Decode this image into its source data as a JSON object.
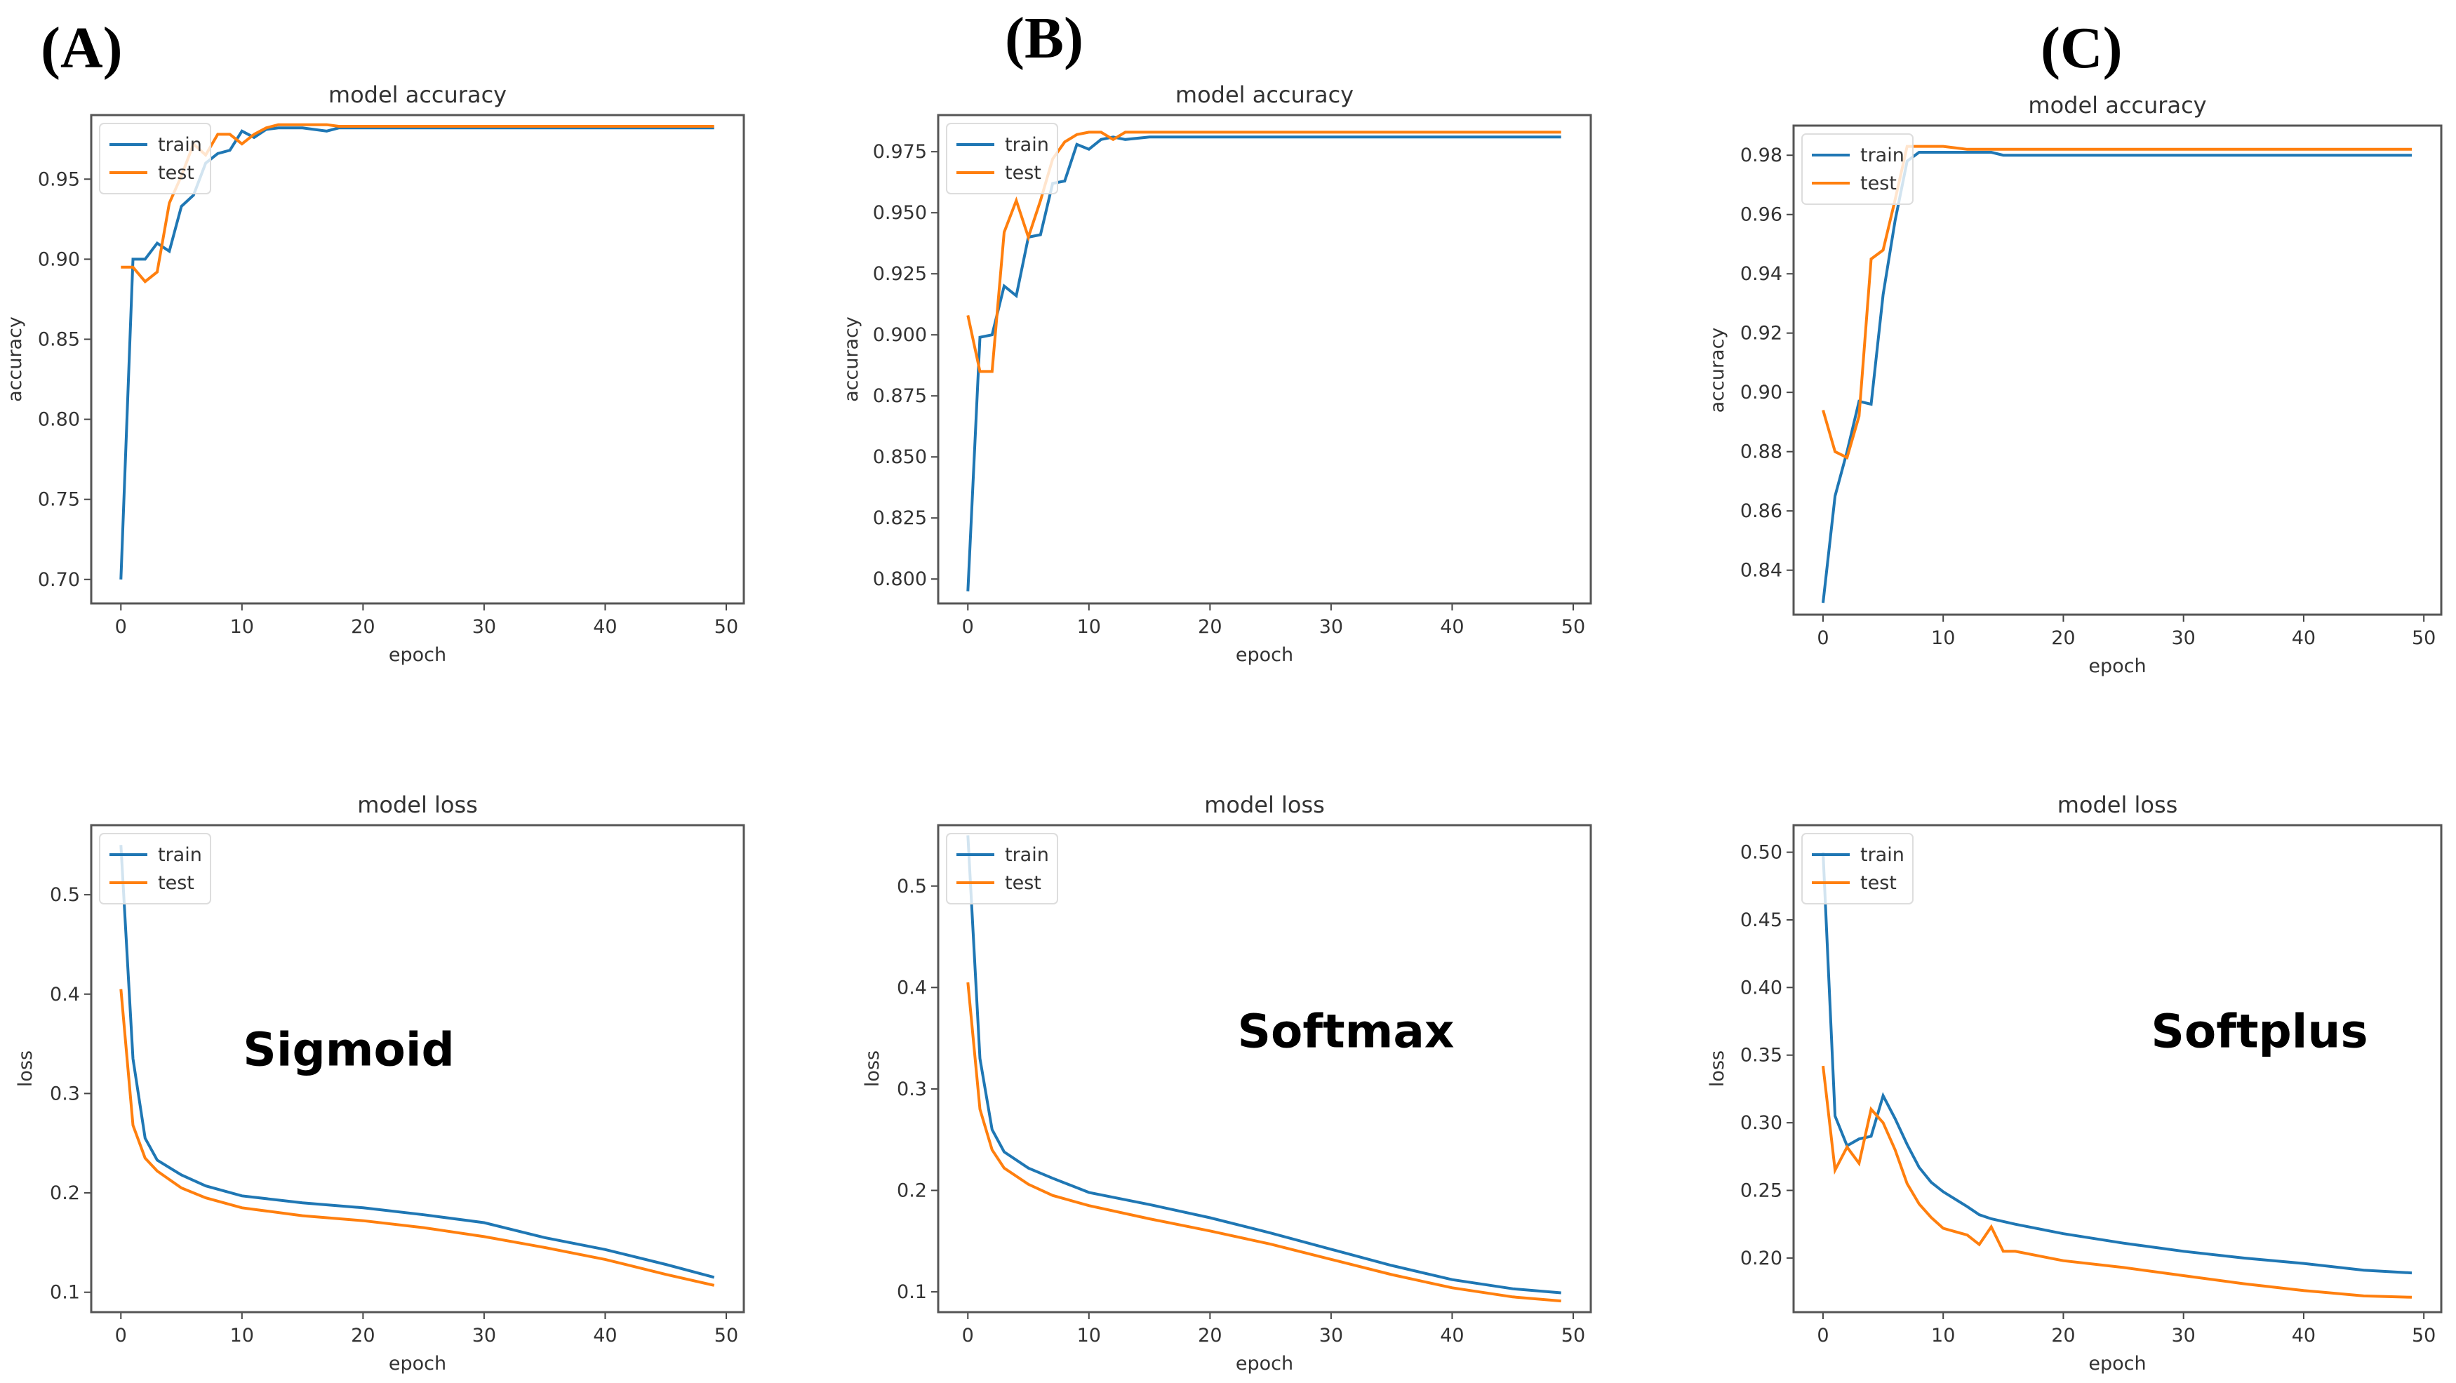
{
  "panel_labels": [
    "(A)",
    "(B)",
    "(C)"
  ],
  "activation_labels": [
    "Sigmoid",
    "Softmax",
    "Softplus"
  ],
  "colors": {
    "train": "#1f77b4",
    "test": "#ff7f0e"
  },
  "chart_data": [
    {
      "type": "line",
      "panel": "A",
      "title": "model accuracy",
      "xlabel": "epoch",
      "ylabel": "accuracy",
      "xlim": [
        -2.45,
        51.45
      ],
      "ylim": [
        0.685,
        0.99
      ],
      "xticks": [
        0,
        10,
        20,
        30,
        40,
        50
      ],
      "yticks": [
        0.7,
        0.75,
        0.8,
        0.85,
        0.9,
        0.95
      ],
      "ytick_labels": [
        "0.70",
        "0.75",
        "0.80",
        "0.85",
        "0.90",
        "0.95"
      ],
      "legend": "upper-left",
      "series": [
        {
          "name": "train",
          "x": [
            0,
            1,
            2,
            3,
            4,
            5,
            6,
            7,
            8,
            9,
            10,
            11,
            12,
            13,
            15,
            17,
            18,
            20,
            30,
            49
          ],
          "y": [
            0.7,
            0.9,
            0.9,
            0.91,
            0.905,
            0.933,
            0.94,
            0.96,
            0.966,
            0.968,
            0.98,
            0.976,
            0.981,
            0.982,
            0.982,
            0.98,
            0.982,
            0.982,
            0.982,
            0.982
          ]
        },
        {
          "name": "test",
          "x": [
            0,
            1,
            2,
            3,
            4,
            5,
            6,
            7,
            8,
            9,
            10,
            11,
            12,
            13,
            15,
            17,
            18,
            20,
            30,
            49
          ],
          "y": [
            0.895,
            0.895,
            0.886,
            0.892,
            0.935,
            0.952,
            0.972,
            0.965,
            0.978,
            0.978,
            0.972,
            0.978,
            0.982,
            0.984,
            0.984,
            0.984,
            0.983,
            0.983,
            0.983,
            0.983
          ]
        }
      ]
    },
    {
      "type": "line",
      "panel": "B",
      "title": "model accuracy",
      "xlabel": "epoch",
      "ylabel": "accuracy",
      "xlim": [
        -2.45,
        51.45
      ],
      "ylim": [
        0.79,
        0.99
      ],
      "xticks": [
        0,
        10,
        20,
        30,
        40,
        50
      ],
      "yticks": [
        0.8,
        0.825,
        0.85,
        0.875,
        0.9,
        0.925,
        0.95,
        0.975
      ],
      "ytick_labels": [
        "0.800",
        "0.825",
        "0.850",
        "0.875",
        "0.900",
        "0.925",
        "0.950",
        "0.975"
      ],
      "legend": "upper-left",
      "series": [
        {
          "name": "train",
          "x": [
            0,
            1,
            2,
            3,
            4,
            5,
            6,
            7,
            8,
            9,
            10,
            11,
            12,
            13,
            15,
            20,
            49
          ],
          "y": [
            0.795,
            0.899,
            0.9,
            0.92,
            0.916,
            0.94,
            0.941,
            0.962,
            0.963,
            0.978,
            0.976,
            0.98,
            0.981,
            0.98,
            0.981,
            0.981,
            0.981
          ]
        },
        {
          "name": "test",
          "x": [
            0,
            1,
            2,
            3,
            4,
            5,
            6,
            7,
            8,
            9,
            10,
            11,
            12,
            13,
            15,
            20,
            49
          ],
          "y": [
            0.908,
            0.885,
            0.885,
            0.942,
            0.955,
            0.94,
            0.955,
            0.972,
            0.979,
            0.982,
            0.983,
            0.983,
            0.98,
            0.983,
            0.983,
            0.983,
            0.983
          ]
        }
      ]
    },
    {
      "type": "line",
      "panel": "C",
      "title": "model accuracy",
      "xlabel": "epoch",
      "ylabel": "accuracy",
      "xlim": [
        -2.45,
        51.45
      ],
      "ylim": [
        0.825,
        0.99
      ],
      "xticks": [
        0,
        10,
        20,
        30,
        40,
        50
      ],
      "yticks": [
        0.84,
        0.86,
        0.88,
        0.9,
        0.92,
        0.94,
        0.96,
        0.98
      ],
      "ytick_labels": [
        "0.84",
        "0.86",
        "0.88",
        "0.90",
        "0.92",
        "0.94",
        "0.96",
        "0.98"
      ],
      "legend": "upper-left",
      "series": [
        {
          "name": "train",
          "x": [
            0,
            1,
            2,
            3,
            4,
            5,
            6,
            7,
            8,
            10,
            12,
            14,
            15,
            20,
            49
          ],
          "y": [
            0.829,
            0.865,
            0.88,
            0.897,
            0.896,
            0.933,
            0.958,
            0.978,
            0.981,
            0.981,
            0.981,
            0.981,
            0.98,
            0.98,
            0.98
          ]
        },
        {
          "name": "test",
          "x": [
            0,
            1,
            2,
            3,
            4,
            5,
            6,
            7,
            8,
            10,
            12,
            14,
            15,
            20,
            49
          ],
          "y": [
            0.894,
            0.88,
            0.878,
            0.892,
            0.945,
            0.948,
            0.965,
            0.983,
            0.983,
            0.983,
            0.982,
            0.982,
            0.982,
            0.982,
            0.982
          ]
        }
      ]
    },
    {
      "type": "line",
      "panel": "A",
      "title": "model loss",
      "xlabel": "epoch",
      "ylabel": "loss",
      "xlim": [
        -2.45,
        51.45
      ],
      "ylim": [
        0.08,
        0.57
      ],
      "xticks": [
        0,
        10,
        20,
        30,
        40,
        50
      ],
      "yticks": [
        0.1,
        0.2,
        0.3,
        0.4,
        0.5
      ],
      "ytick_labels": [
        "0.1",
        "0.2",
        "0.3",
        "0.4",
        "0.5"
      ],
      "legend": "upper-left",
      "series": [
        {
          "name": "train",
          "x": [
            0,
            1,
            2,
            3,
            5,
            7,
            10,
            15,
            20,
            25,
            30,
            35,
            40,
            45,
            49
          ],
          "y": [
            0.55,
            0.335,
            0.255,
            0.233,
            0.218,
            0.207,
            0.197,
            0.19,
            0.185,
            0.178,
            0.17,
            0.155,
            0.143,
            0.128,
            0.115
          ]
        },
        {
          "name": "test",
          "x": [
            0,
            1,
            2,
            3,
            5,
            7,
            10,
            15,
            20,
            25,
            30,
            35,
            40,
            45,
            49
          ],
          "y": [
            0.405,
            0.268,
            0.235,
            0.222,
            0.205,
            0.195,
            0.185,
            0.177,
            0.172,
            0.165,
            0.156,
            0.145,
            0.133,
            0.118,
            0.107
          ]
        }
      ]
    },
    {
      "type": "line",
      "panel": "B",
      "title": "model loss",
      "xlabel": "epoch",
      "ylabel": "loss",
      "xlim": [
        -2.45,
        51.45
      ],
      "ylim": [
        0.08,
        0.56
      ],
      "xticks": [
        0,
        10,
        20,
        30,
        40,
        50
      ],
      "yticks": [
        0.1,
        0.2,
        0.3,
        0.4,
        0.5
      ],
      "ytick_labels": [
        "0.1",
        "0.2",
        "0.3",
        "0.4",
        "0.5"
      ],
      "legend": "upper-left",
      "series": [
        {
          "name": "train",
          "x": [
            0,
            1,
            2,
            3,
            5,
            7,
            10,
            15,
            20,
            25,
            30,
            35,
            40,
            45,
            49
          ],
          "y": [
            0.55,
            0.33,
            0.26,
            0.238,
            0.222,
            0.212,
            0.198,
            0.186,
            0.173,
            0.158,
            0.142,
            0.126,
            0.112,
            0.103,
            0.099
          ]
        },
        {
          "name": "test",
          "x": [
            0,
            1,
            2,
            3,
            5,
            7,
            10,
            15,
            20,
            25,
            30,
            35,
            40,
            45,
            49
          ],
          "y": [
            0.405,
            0.28,
            0.24,
            0.222,
            0.206,
            0.195,
            0.185,
            0.172,
            0.16,
            0.147,
            0.132,
            0.117,
            0.104,
            0.095,
            0.091
          ]
        }
      ]
    },
    {
      "type": "line",
      "panel": "C",
      "title": "model loss",
      "xlabel": "epoch",
      "ylabel": "loss",
      "xlim": [
        -2.45,
        51.45
      ],
      "ylim": [
        0.16,
        0.52
      ],
      "xticks": [
        0,
        10,
        20,
        30,
        40,
        50
      ],
      "yticks": [
        0.2,
        0.25,
        0.3,
        0.35,
        0.4,
        0.45,
        0.5
      ],
      "ytick_labels": [
        "0.20",
        "0.25",
        "0.30",
        "0.35",
        "0.40",
        "0.45",
        "0.50"
      ],
      "legend": "upper-left",
      "series": [
        {
          "name": "train",
          "x": [
            0,
            1,
            2,
            3,
            4,
            5,
            6,
            7,
            8,
            9,
            10,
            12,
            13,
            14,
            15,
            16,
            20,
            25,
            30,
            35,
            40,
            45,
            49
          ],
          "y": [
            0.5,
            0.305,
            0.283,
            0.288,
            0.29,
            0.32,
            0.303,
            0.284,
            0.267,
            0.256,
            0.249,
            0.238,
            0.232,
            0.229,
            0.227,
            0.225,
            0.218,
            0.211,
            0.205,
            0.2,
            0.196,
            0.191,
            0.189
          ]
        },
        {
          "name": "test",
          "x": [
            0,
            1,
            2,
            3,
            4,
            5,
            6,
            7,
            8,
            9,
            10,
            12,
            13,
            14,
            15,
            16,
            20,
            25,
            30,
            35,
            40,
            45,
            49
          ],
          "y": [
            0.342,
            0.265,
            0.282,
            0.27,
            0.31,
            0.3,
            0.28,
            0.255,
            0.24,
            0.23,
            0.222,
            0.217,
            0.21,
            0.223,
            0.205,
            0.205,
            0.198,
            0.193,
            0.187,
            0.181,
            0.176,
            0.172,
            0.171
          ]
        }
      ]
    }
  ]
}
